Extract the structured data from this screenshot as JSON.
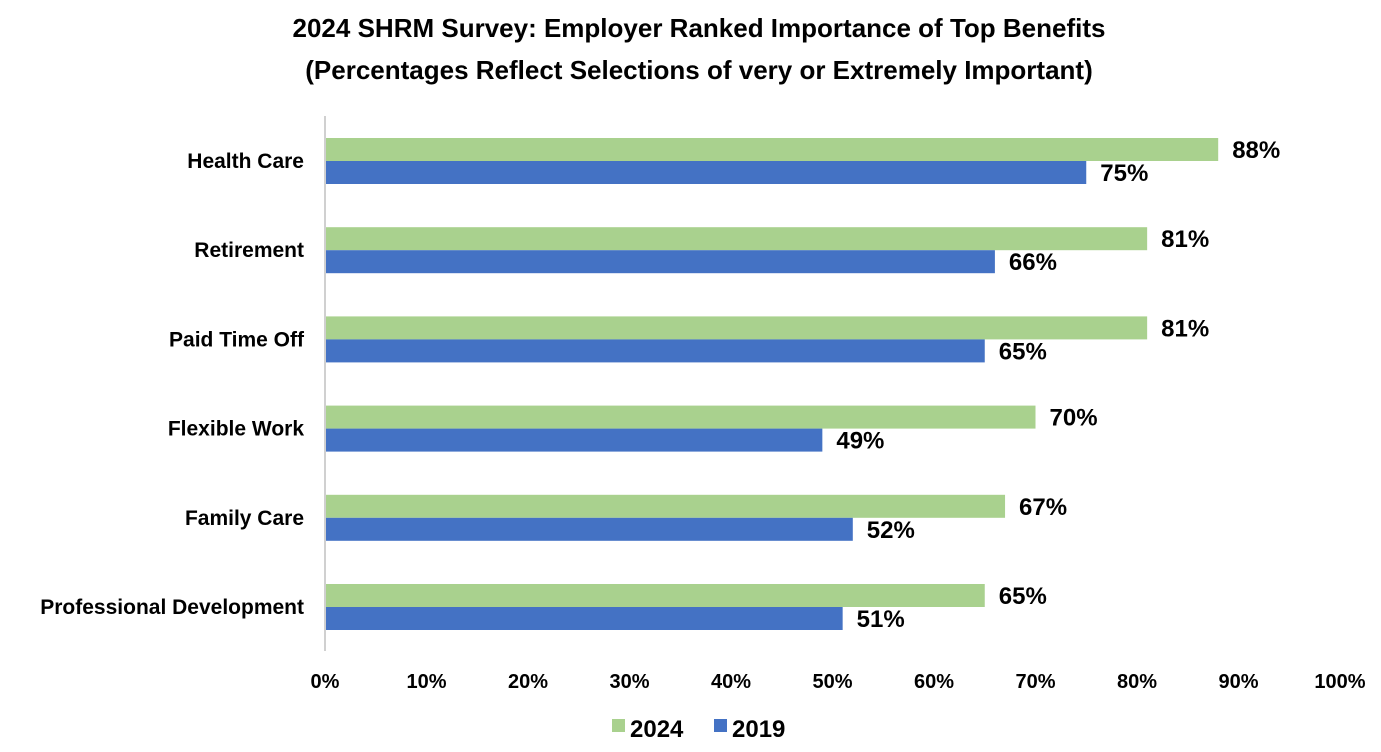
{
  "chart_data": {
    "type": "bar",
    "orientation": "horizontal",
    "title": "2024 SHRM Survey: Employer Ranked Importance of Top Benefits",
    "subtitle": "(Percentages Reflect Selections of very or Extremely Important)",
    "categories": [
      "Health Care",
      "Retirement",
      "Paid Time Off",
      "Flexible Work",
      "Family Care",
      "Professional Development"
    ],
    "series": [
      {
        "name": "2024",
        "color": "#a9d18e",
        "values": [
          88,
          81,
          81,
          70,
          67,
          65
        ],
        "labels": [
          "88%",
          "81%",
          "81%",
          "70%",
          "67%",
          "65%"
        ]
      },
      {
        "name": "2019",
        "color": "#4472c4",
        "values": [
          75,
          66,
          65,
          49,
          52,
          51
        ],
        "labels": [
          "75%",
          "66%",
          "65%",
          "49%",
          "52%",
          "51%"
        ]
      }
    ],
    "xlim": [
      0,
      100
    ],
    "xticks": [
      "0%",
      "10%",
      "20%",
      "30%",
      "40%",
      "50%",
      "60%",
      "70%",
      "80%",
      "90%",
      "100%"
    ],
    "grid": false,
    "legend_position": "bottom"
  }
}
